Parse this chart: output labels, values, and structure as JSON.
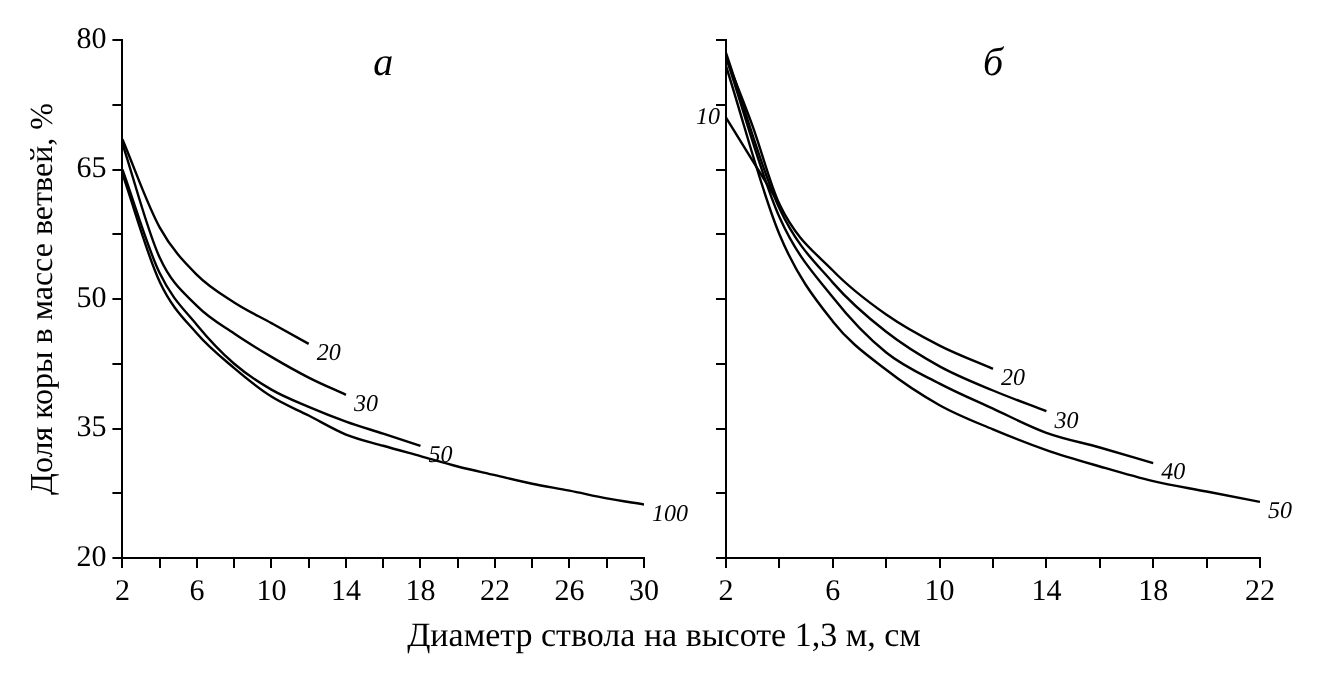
{
  "chart_data": [
    {
      "type": "line",
      "title": "а",
      "ylabel": "Доля коры в массе ветвей, %",
      "xlabel": "Диаметр ствола на высоте 1,3 м, см",
      "xlim": [
        2,
        30
      ],
      "ylim": [
        20,
        80
      ],
      "xticks": [
        2,
        {
          "value": 4,
          "label": null
        },
        6,
        {
          "value": 8,
          "label": null
        },
        10,
        {
          "value": 12,
          "label": null
        },
        14,
        {
          "value": 16,
          "label": null
        },
        18,
        {
          "value": 20,
          "label": null
        },
        22,
        {
          "value": 24,
          "label": null
        },
        26,
        {
          "value": 28,
          "label": null
        },
        30
      ],
      "yticks": [
        20,
        {
          "value": 27.5,
          "label": null
        },
        35,
        {
          "value": 42.5,
          "label": null
        },
        50,
        {
          "value": 57.5,
          "label": null
        },
        65,
        {
          "value": 72.5,
          "label": null
        },
        80
      ],
      "grid": false,
      "legend": false,
      "marker": "none",
      "line_style": "solid",
      "series": [
        {
          "color": "#000000",
          "x": [
            2,
            4,
            6,
            8,
            10,
            12
          ],
          "values": [
            68.5,
            58.3,
            52.8,
            49.6,
            47.2,
            44.8
          ]
        },
        {
          "color": "#000000",
          "x": [
            2,
            4,
            6,
            8,
            10,
            12,
            14
          ],
          "values": [
            68,
            54.8,
            49.2,
            46,
            43.3,
            40.9,
            38.9
          ]
        },
        {
          "color": "#000000",
          "x": [
            2,
            4,
            6,
            8,
            10,
            12,
            14,
            16,
            18
          ],
          "values": [
            65,
            53,
            47,
            42.5,
            39.5,
            37.5,
            35.8,
            34.4,
            33
          ]
        },
        {
          "color": "#000000",
          "x": [
            2,
            4,
            6,
            8,
            10,
            12,
            14,
            16,
            18,
            20,
            22,
            24,
            26,
            28,
            30
          ],
          "values": [
            64.5,
            52,
            46,
            42,
            38.7,
            36.5,
            34.3,
            33,
            31.8,
            30.6,
            29.6,
            28.6,
            27.8,
            26.9,
            26.2
          ]
        }
      ],
      "annotations": [
        {
          "text": "20",
          "x": 12,
          "y": 44.8
        },
        {
          "text": "30",
          "x": 14,
          "y": 38.9
        },
        {
          "text": "50",
          "x": 18,
          "y": 33
        },
        {
          "text": "100",
          "x": 30,
          "y": 26.2
        }
      ]
    },
    {
      "type": "line",
      "title": "б",
      "xlim": [
        2,
        22
      ],
      "ylim": [
        20,
        80
      ],
      "xticks": [
        2,
        {
          "value": 4,
          "label": null
        },
        6,
        {
          "value": 8,
          "label": null
        },
        10,
        {
          "value": 12,
          "label": null
        },
        14,
        {
          "value": 16,
          "label": null
        },
        18,
        {
          "value": 20,
          "label": null
        },
        22
      ],
      "yticks": [
        20,
        {
          "value": 27.5,
          "label": null
        },
        35,
        {
          "value": 42.5,
          "label": null
        },
        50,
        {
          "value": 57.5,
          "label": null
        },
        65,
        {
          "value": 72.5,
          "label": null
        },
        80
      ],
      "tick_labels": "x",
      "grid": false,
      "legend": false,
      "marker": "none",
      "line_style": "solid",
      "series": [
        {
          "color": "#000000",
          "x": [
            2,
            3,
            4
          ],
          "values": [
            71,
            66,
            61
          ]
        },
        {
          "color": "#000000",
          "x": [
            2,
            3,
            4,
            6,
            8,
            10,
            12
          ],
          "values": [
            78,
            70,
            61,
            53.3,
            48.2,
            44.6,
            41.9
          ]
        },
        {
          "color": "#000000",
          "x": [
            2,
            4,
            6,
            8,
            10,
            12,
            14
          ],
          "values": [
            78.5,
            60.5,
            51.9,
            46.2,
            42.2,
            39.4,
            37
          ]
        },
        {
          "color": "#000000",
          "x": [
            2,
            4,
            6,
            8,
            10,
            12,
            14,
            16,
            18
          ],
          "values": [
            78,
            59.5,
            50.2,
            43.8,
            40.2,
            37.3,
            34.5,
            32.8,
            31
          ]
        },
        {
          "color": "#000000",
          "x": [
            2,
            4,
            6,
            8,
            10,
            12,
            14,
            16,
            18,
            20,
            22
          ],
          "values": [
            77,
            57.5,
            47.4,
            41.8,
            37.7,
            34.9,
            32.5,
            30.6,
            28.9,
            27.7,
            26.5
          ]
        }
      ],
      "annotations": [
        {
          "text": "10",
          "x": 2,
          "y": 71
        },
        {
          "text": "20",
          "x": 12,
          "y": 41.9
        },
        {
          "text": "30",
          "x": 14,
          "y": 37
        },
        {
          "text": "40",
          "x": 18,
          "y": 31
        },
        {
          "text": "50",
          "x": 22,
          "y": 26.5
        }
      ]
    }
  ]
}
